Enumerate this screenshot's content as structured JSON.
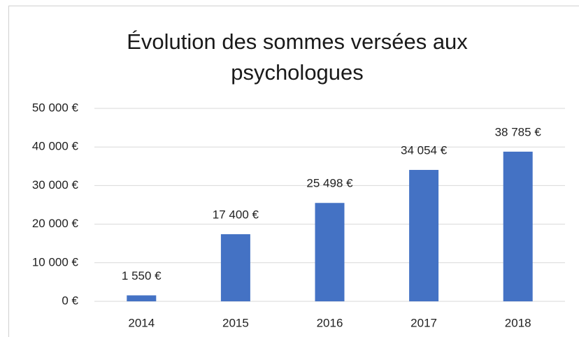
{
  "chart_data": {
    "type": "bar",
    "title": "Évolution des sommes versées aux psychologues",
    "categories": [
      "2014",
      "2015",
      "2016",
      "2017",
      "2018"
    ],
    "values": [
      1550,
      17400,
      25498,
      34054,
      38785
    ],
    "value_labels": [
      "1 550 €",
      "17 400 €",
      "25 498 €",
      "34 054 €",
      "38 785 €"
    ],
    "color": "#4472c4",
    "ylim": [
      0,
      50000
    ],
    "yticks": [
      {
        "value": 0,
        "label": "0 €"
      },
      {
        "value": 10000,
        "label": "10 000 €"
      },
      {
        "value": 20000,
        "label": "20 000 €"
      },
      {
        "value": 30000,
        "label": "30 000 €"
      },
      {
        "value": 40000,
        "label": "40 000 €"
      },
      {
        "value": 50000,
        "label": "50 000 €"
      }
    ],
    "grid": true
  }
}
